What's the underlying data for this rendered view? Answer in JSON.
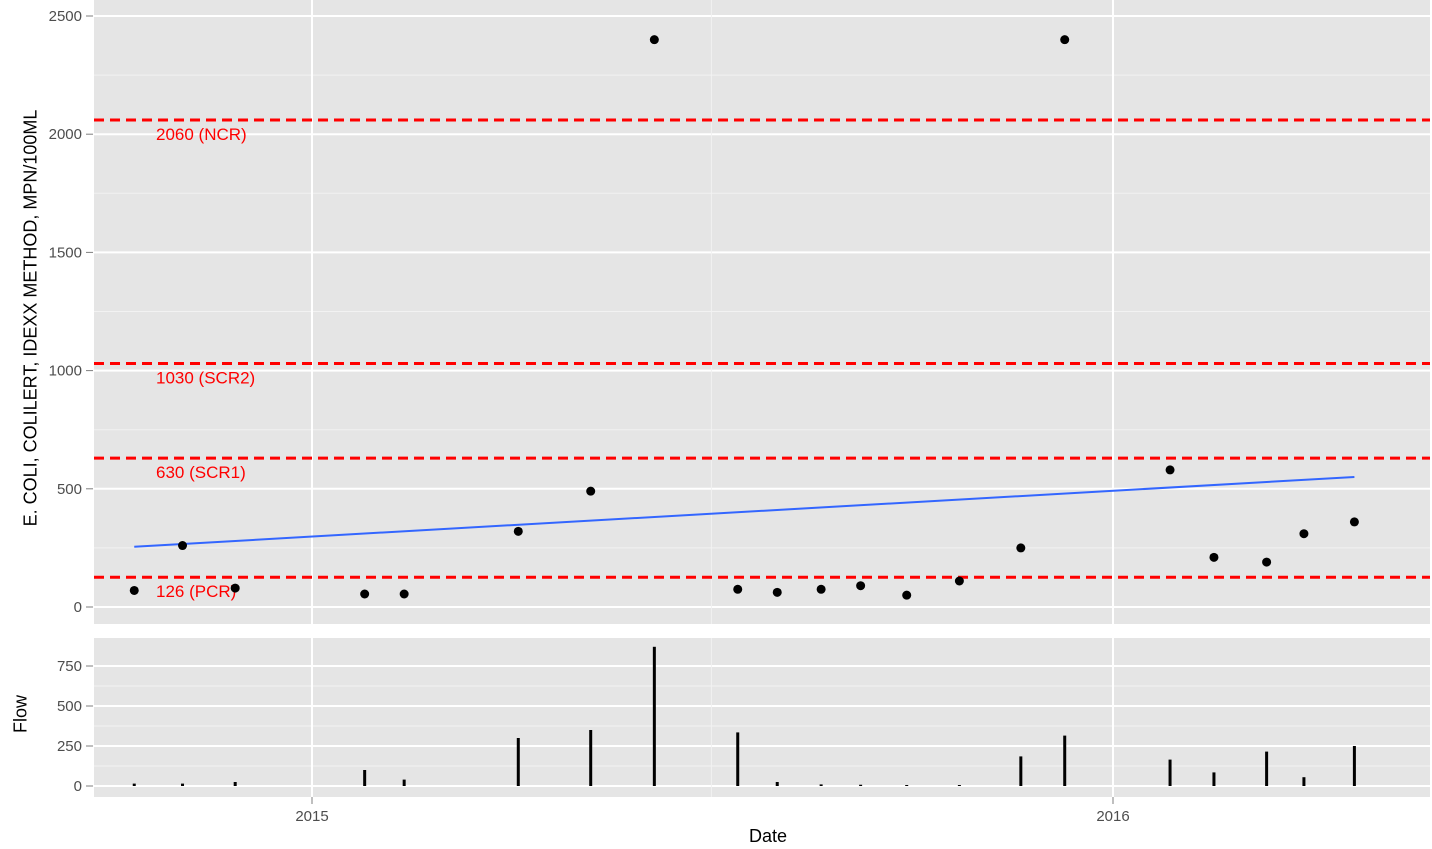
{
  "chart_data": [
    {
      "type": "scatter",
      "ylabel": "E. COLI, COLILERT, IDEXX METHOD, MPN/100ML",
      "ylim": [
        -50,
        2500
      ],
      "y_ticks": [
        0,
        500,
        1000,
        1500,
        2000,
        2500
      ],
      "y_tick_labels": [
        "0",
        "500",
        "1000",
        "1500",
        "2000",
        "2500"
      ],
      "grid": true,
      "points": [
        {
          "x": "2014-10-12",
          "y": 70
        },
        {
          "x": "2014-11-03",
          "y": 260
        },
        {
          "x": "2014-11-27",
          "y": 80
        },
        {
          "x": "2015-01-25",
          "y": 55
        },
        {
          "x": "2015-02-12",
          "y": 55
        },
        {
          "x": "2015-04-05",
          "y": 320
        },
        {
          "x": "2015-05-08",
          "y": 490
        },
        {
          "x": "2015-06-06",
          "y": 2400
        },
        {
          "x": "2015-07-14",
          "y": 75
        },
        {
          "x": "2015-08-01",
          "y": 62
        },
        {
          "x": "2015-08-21",
          "y": 75
        },
        {
          "x": "2015-09-08",
          "y": 90
        },
        {
          "x": "2015-09-29",
          "y": 50
        },
        {
          "x": "2015-10-23",
          "y": 110
        },
        {
          "x": "2015-11-20",
          "y": 250
        },
        {
          "x": "2015-12-10",
          "y": 2400
        },
        {
          "x": "2016-01-27",
          "y": 580
        },
        {
          "x": "2016-02-16",
          "y": 210
        },
        {
          "x": "2016-03-11",
          "y": 190
        },
        {
          "x": "2016-03-28",
          "y": 310
        },
        {
          "x": "2016-04-20",
          "y": 360
        }
      ],
      "trend_line": {
        "color": "#3366FF",
        "points": [
          {
            "x": "2014-10-12",
            "y": 255
          },
          {
            "x": "2016-04-20",
            "y": 550
          }
        ]
      },
      "reference_lines": [
        {
          "y": 2060,
          "label": "2060 (NCR)",
          "color": "#FF0000"
        },
        {
          "y": 1030,
          "label": "1030 (SCR2)",
          "color": "#FF0000"
        },
        {
          "y": 630,
          "label": "630 (SCR1)",
          "color": "#FF0000"
        },
        {
          "y": 126,
          "label": "126 (PCR)",
          "color": "#FF0000"
        }
      ]
    },
    {
      "type": "bar",
      "xlabel": "Date",
      "ylabel": "Flow",
      "ylim": [
        -30,
        880
      ],
      "y_ticks": [
        0,
        250,
        500,
        750
      ],
      "y_tick_labels": [
        "0",
        "250",
        "500",
        "750"
      ],
      "x_ticks": [
        "2015-01-01",
        "2016-01-01"
      ],
      "x_tick_labels": [
        "2015",
        "2016"
      ],
      "grid": true,
      "points": [
        {
          "x": "2014-10-12",
          "y": 15
        },
        {
          "x": "2014-11-03",
          "y": 15
        },
        {
          "x": "2014-11-27",
          "y": 25
        },
        {
          "x": "2015-01-25",
          "y": 100
        },
        {
          "x": "2015-02-12",
          "y": 40
        },
        {
          "x": "2015-04-05",
          "y": 300
        },
        {
          "x": "2015-05-08",
          "y": 350
        },
        {
          "x": "2015-06-06",
          "y": 870
        },
        {
          "x": "2015-07-14",
          "y": 335
        },
        {
          "x": "2015-08-01",
          "y": 25
        },
        {
          "x": "2015-08-21",
          "y": 10
        },
        {
          "x": "2015-09-08",
          "y": 8
        },
        {
          "x": "2015-09-29",
          "y": 5
        },
        {
          "x": "2015-10-23",
          "y": 5
        },
        {
          "x": "2015-11-20",
          "y": 185
        },
        {
          "x": "2015-12-10",
          "y": 315
        },
        {
          "x": "2016-01-27",
          "y": 165
        },
        {
          "x": "2016-02-16",
          "y": 85
        },
        {
          "x": "2016-03-11",
          "y": 215
        },
        {
          "x": "2016-03-28",
          "y": 55
        },
        {
          "x": "2016-04-20",
          "y": 250
        }
      ]
    }
  ]
}
